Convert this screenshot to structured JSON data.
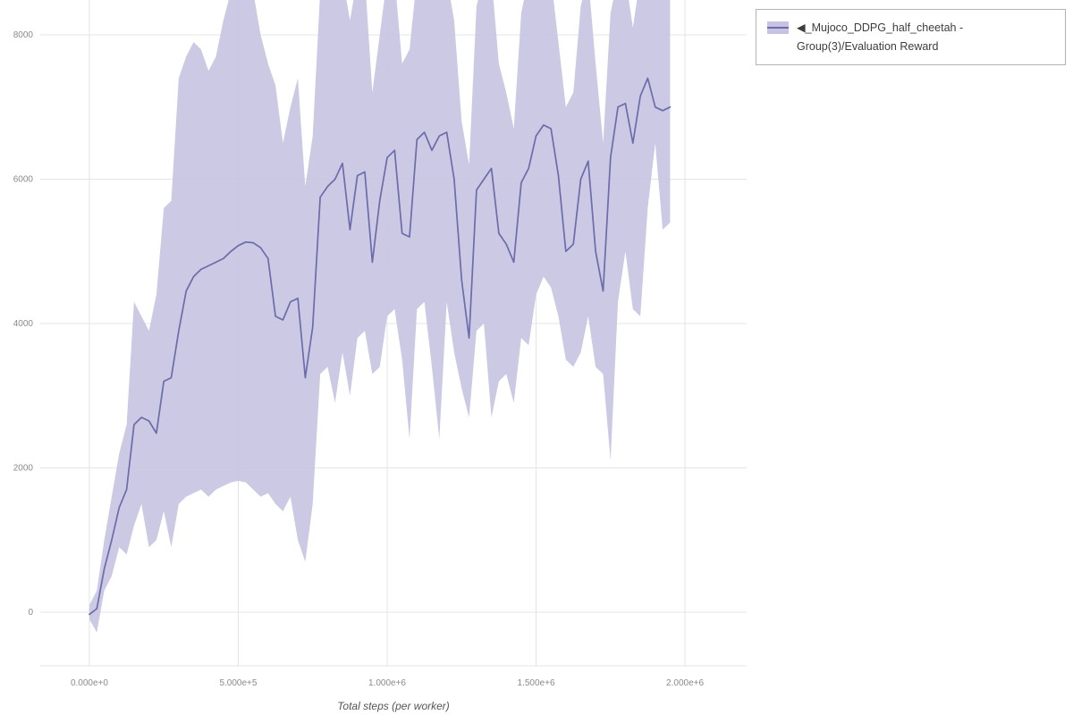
{
  "legend": {
    "icon": "◀",
    "label": "_Mujoco_DDPG_half_cheetah - Group(3)/Evaluation Reward"
  },
  "chart_data": {
    "type": "line",
    "title": "",
    "xlabel": "Total steps (per worker)",
    "ylabel": "",
    "grid": true,
    "legend_position": "top-right",
    "xlim": [
      -165000,
      2207000
    ],
    "ylim": [
      -743,
      8483
    ],
    "x_ticks": [
      {
        "value": 0,
        "label": "0.000e+0"
      },
      {
        "value": 500000,
        "label": "5.000e+5"
      },
      {
        "value": 1000000,
        "label": "1.000e+6"
      },
      {
        "value": 1500000,
        "label": "1.500e+6"
      },
      {
        "value": 2000000,
        "label": "2.000e+6"
      }
    ],
    "y_ticks": [
      {
        "value": 0,
        "label": "0"
      },
      {
        "value": 2000,
        "label": "2000"
      },
      {
        "value": 4000,
        "label": "4000"
      },
      {
        "value": 6000,
        "label": "6000"
      },
      {
        "value": 8000,
        "label": "8000"
      }
    ],
    "series": [
      {
        "name": "_Mujoco_DDPG_half_cheetah - Group(3)/Evaluation Reward",
        "x_start": 0,
        "x_step": 25000,
        "mean": [
          -30,
          50,
          600,
          1000,
          1450,
          1700,
          2600,
          2700,
          2650,
          2480,
          3200,
          3250,
          3900,
          4450,
          4650,
          4750,
          4800,
          4850,
          4900,
          5000,
          5080,
          5130,
          5120,
          5050,
          4900,
          4100,
          4050,
          4300,
          4350,
          3250,
          3950,
          5750,
          5900,
          6000,
          6220,
          5300,
          6050,
          6100,
          4850,
          5700,
          6300,
          6400,
          5250,
          5200,
          6550,
          6650,
          6400,
          6600,
          6650,
          6000,
          4600,
          3800,
          5850,
          6000,
          6150,
          5250,
          5100,
          4850,
          5950,
          6150,
          6600,
          6750,
          6700,
          6050,
          5000,
          5100,
          6000,
          6250,
          5000,
          4450,
          6300,
          7000,
          7050,
          6500,
          7150,
          7400,
          7000,
          6950,
          7000
        ],
        "band_lower": [
          -100,
          -280,
          300,
          500,
          900,
          800,
          1200,
          1500,
          900,
          1000,
          1400,
          900,
          1500,
          1600,
          1650,
          1700,
          1600,
          1700,
          1750,
          1800,
          1820,
          1800,
          1700,
          1600,
          1650,
          1500,
          1400,
          1600,
          1000,
          700,
          1500,
          3300,
          3400,
          2900,
          3600,
          3000,
          3800,
          3900,
          3300,
          3400,
          4100,
          4200,
          3500,
          2400,
          4200,
          4300,
          3400,
          2400,
          4300,
          3600,
          3100,
          2700,
          3900,
          4000,
          2700,
          3200,
          3300,
          2900,
          3800,
          3700,
          4400,
          4650,
          4500,
          4100,
          3500,
          3400,
          3600,
          4100,
          3400,
          3300,
          2100,
          4300,
          5000,
          4200,
          4100,
          5600,
          6500,
          5300,
          5400
        ],
        "band_upper": [
          100,
          300,
          1000,
          1600,
          2200,
          2600,
          4300,
          4100,
          3900,
          4400,
          5600,
          5700,
          7400,
          7700,
          7900,
          7800,
          7500,
          7700,
          8200,
          8600,
          8800,
          8800,
          8600,
          8000,
          7600,
          7300,
          6500,
          7000,
          7400,
          5900,
          6600,
          8600,
          8800,
          8700,
          8800,
          8200,
          8800,
          8800,
          7200,
          8000,
          8800,
          8800,
          7600,
          7800,
          8800,
          8800,
          8800,
          8800,
          8800,
          8200,
          6800,
          6200,
          8400,
          8800,
          8800,
          7600,
          7200,
          6700,
          8300,
          8800,
          8800,
          8800,
          8800,
          7900,
          7000,
          7200,
          8400,
          8800,
          7600,
          6500,
          8300,
          8800,
          8800,
          8100,
          8800,
          8800,
          8600,
          8600,
          8600
        ]
      }
    ],
    "colors": {
      "line": "#6a6cab",
      "band": "#c5c3e1",
      "grid": "#e4e4e4",
      "tick_text": "#8a8a8a",
      "axis_label": "#555555"
    }
  }
}
